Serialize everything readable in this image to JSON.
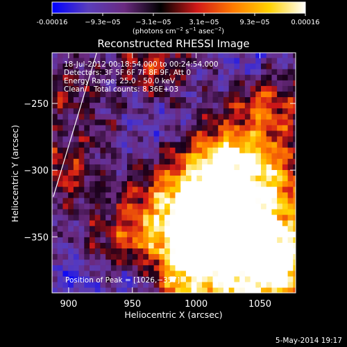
{
  "colorbar": {
    "tick_labels": [
      "-0.00016",
      "−9.3e−05",
      "−3.1e−05",
      "3.1e−05",
      "9.3e−05",
      "0.00016"
    ],
    "min": -0.00016,
    "max": 0.00016,
    "unit_prefix": "(photons cm",
    "unit_exp1": "−2",
    "unit_mid": " s",
    "unit_exp2": "−1",
    "unit_tail": " asec",
    "unit_exp3": "−2",
    "unit_close": ")",
    "stops": [
      "#0000ff",
      "#5a3dbb",
      "#6a2a80",
      "#000000",
      "#d01818",
      "#ff7a00",
      "#ffd200",
      "#ffffff"
    ]
  },
  "chart_data": {
    "type": "heatmap",
    "title": "Reconstructed RHESSI Image",
    "xlabel": "Heliocentric X (arcsec)",
    "ylabel": "Heliocentric Y (arcsec)",
    "xlim": [
      887,
      1078
    ],
    "ylim": [
      -392,
      -212
    ],
    "xticks": [
      900,
      950,
      1000,
      1050
    ],
    "yticks": [
      -250,
      -300,
      -350
    ],
    "xtick_labels": [
      "900",
      "950",
      "1000",
      "1050"
    ],
    "ytick_labels": [
      "−250",
      "−300",
      "−350"
    ],
    "info_lines": [
      "18-Jul-2012 00:18:54.000 to 00:24:54.000",
      "Detectors: 3F 5F 6F 7F 8F 9F, Att 0",
      "Energy Range: 25.0 - 50.0 keV",
      "Clean    Total counts: 8.36E+03"
    ],
    "peak_label": "Position of Peak = [1026,−357]",
    "peak": [
      1026,
      -357
    ],
    "limb_line": [
      [
        888,
        -320
      ],
      [
        922,
        -212
      ]
    ]
  },
  "footer": {
    "date": "5-May-2014 19:17"
  }
}
